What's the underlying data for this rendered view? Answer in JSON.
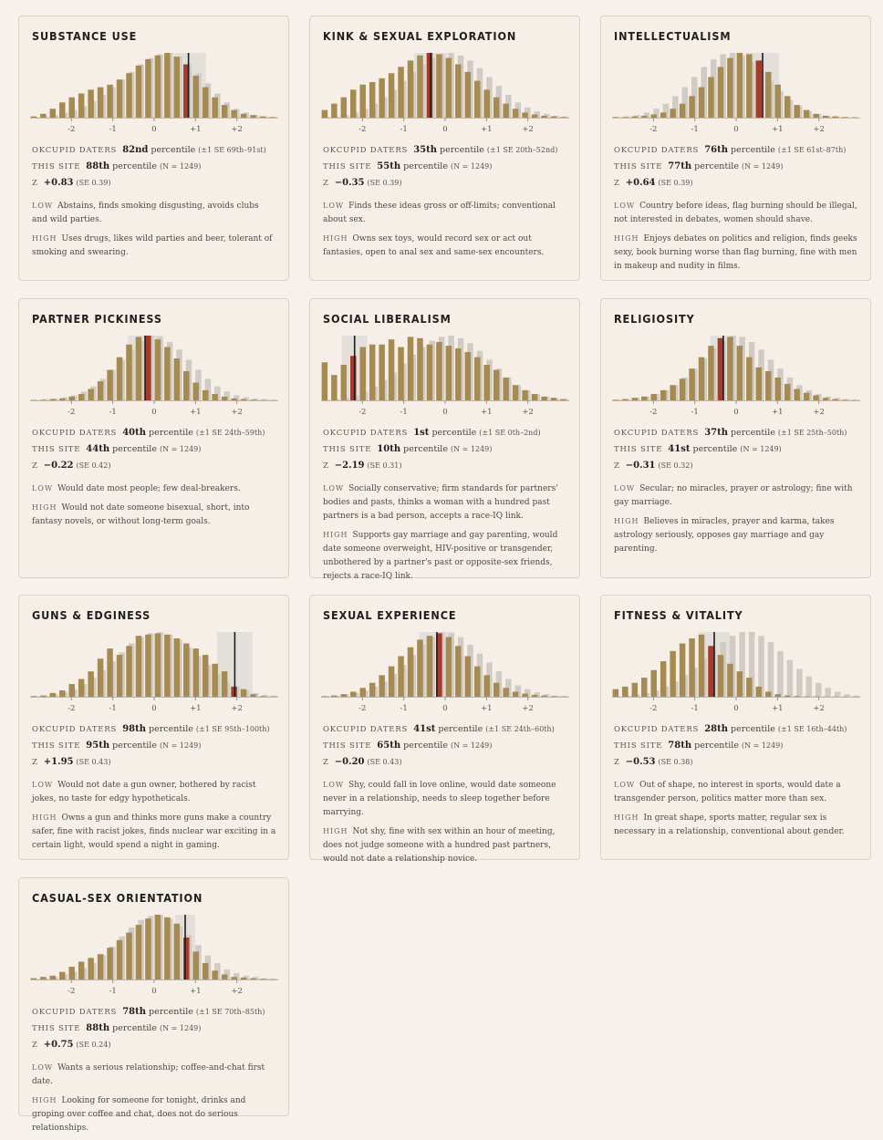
{
  "colors": {
    "page_bg": "#f6f1ea",
    "card_bg": "#f5efe7",
    "card_border": "#d9d2c7",
    "bar_site": "#a58a52",
    "bar_okcupid": "#d0cbc5",
    "band": "#e3e0dc",
    "marker": "#1c1c1c",
    "highlight": "#a83a2c"
  },
  "labels": {
    "okcupid": "OKCUPID DATERS",
    "site": "THIS SITE",
    "z": "Z",
    "low": "LOW",
    "high": "HIGH"
  },
  "axis_ticks": [
    "-2",
    "-1",
    "0",
    "+1",
    "+2"
  ],
  "cards": [
    {
      "title": "SUBSTANCE USE",
      "okcupid_pct": "82nd",
      "okcupid_rest": "percentile",
      "okcupid_paren": "(±1 SE 69th–91st)",
      "site_pct": "88th",
      "site_rest": "percentile",
      "site_paren": "(N = 1249)",
      "z_val": "+0.83",
      "z_paren": "(SE 0.39)",
      "low": "Abstains, finds smoking disgusting, avoids clubs and wild parties.",
      "high": "Uses drugs, likes wild parties and beer, tolerant of smoking and swearing.",
      "chart_data": {
        "type": "bar",
        "z_score": 0.83,
        "band": [
          0.45,
          1.25
        ],
        "okcupid_values": [
          0.5,
          1,
          2,
          4,
          6,
          9,
          13,
          18,
          24,
          30,
          36,
          42,
          47,
          50,
          51,
          48,
          42,
          35,
          27,
          19,
          12,
          7,
          4,
          2,
          1,
          0.5
        ],
        "site_values": [
          1,
          3,
          7,
          12,
          16,
          19,
          22,
          24,
          26,
          30,
          35,
          41,
          46,
          49,
          51,
          48,
          42,
          33,
          24,
          16,
          10,
          6,
          3,
          2,
          1,
          0.5
        ]
      }
    },
    {
      "title": "KINK & SEXUAL EXPLORATION",
      "okcupid_pct": "35th",
      "okcupid_rest": "percentile",
      "okcupid_paren": "(±1 SE 20th–52nd)",
      "site_pct": "55th",
      "site_rest": "percentile",
      "site_paren": "(N = 1249)",
      "z_val": "−0.35",
      "z_paren": "(SE 0.39)",
      "low": "Finds these ideas gross or off-limits; conventional about sex.",
      "high": "Owns sex toys, would record sex or act out fantasies, open to anal sex and same-sex encounters.",
      "chart_data": {
        "type": "bar",
        "z_score": -0.35,
        "band": [
          -0.75,
          0.05
        ],
        "okcupid_values": [
          0.5,
          1,
          2,
          4,
          7,
          11,
          16,
          22,
          29,
          36,
          42,
          47,
          50,
          51,
          49,
          45,
          39,
          32,
          25,
          18,
          12,
          8,
          5,
          3,
          1.5,
          1
        ],
        "site_values": [
          6,
          11,
          16,
          22,
          26,
          28,
          31,
          35,
          40,
          45,
          49,
          51,
          50,
          47,
          42,
          36,
          29,
          22,
          16,
          11,
          7,
          4,
          2.5,
          1.5,
          1,
          0.5
        ]
      }
    },
    {
      "title": "INTELLECTUALISM",
      "okcupid_pct": "76th",
      "okcupid_rest": "percentile",
      "okcupid_paren": "(±1 SE 61st–87th)",
      "site_pct": "77th",
      "site_rest": "percentile",
      "site_paren": "(N = 1249)",
      "z_val": "+0.64",
      "z_paren": "(SE 0.39)",
      "low": "Country before ideas, flag burning should be illegal, not interested in debates, women should shave.",
      "high": "Enjoys debates on politics and religion, finds geeks sexy, book burning worse than flag burning, fine with men in makeup and nudity in films.",
      "chart_data": {
        "type": "bar",
        "z_score": 0.64,
        "band": [
          0.24,
          1.04
        ],
        "okcupid_values": [
          0.5,
          1,
          2,
          4,
          7,
          11,
          17,
          24,
          32,
          40,
          46,
          50,
          51,
          49,
          44,
          37,
          29,
          21,
          14,
          9,
          5,
          3,
          1.5,
          1,
          0.5,
          0.3
        ],
        "site_values": [
          0.5,
          0.5,
          1,
          1.5,
          2.5,
          4,
          7,
          11,
          17,
          24,
          32,
          40,
          47,
          51,
          50,
          45,
          36,
          26,
          17,
          10,
          6,
          3,
          1.5,
          1,
          0.5,
          0.3
        ]
      }
    },
    {
      "title": "PARTNER PICKINESS",
      "okcupid_pct": "40th",
      "okcupid_rest": "percentile",
      "okcupid_paren": "(±1 SE 24th–59th)",
      "site_pct": "44th",
      "site_rest": "percentile",
      "site_paren": "(N = 1249)",
      "z_val": "−0.22",
      "z_paren": "(SE 0.42)",
      "low": "Would date most people; few deal-breakers.",
      "high": "Would not date someone bisexual, short, into fantasy novels, or without long-term goals.",
      "chart_data": {
        "type": "bar",
        "z_score": -0.22,
        "band": [
          -0.64,
          0.2
        ],
        "okcupid_values": [
          0.5,
          1,
          1.5,
          2.5,
          4,
          7,
          11,
          17,
          24,
          32,
          40,
          47,
          51,
          50,
          46,
          40,
          32,
          24,
          17,
          11,
          7,
          4,
          2.5,
          1.5,
          1,
          0.5
        ],
        "site_values": [
          0.3,
          0.5,
          1,
          1.5,
          3,
          5,
          9,
          15,
          24,
          34,
          44,
          50,
          51,
          48,
          42,
          33,
          23,
          14,
          8,
          5,
          3,
          1.5,
          1,
          0.5,
          0.3,
          0.2
        ]
      }
    },
    {
      "title": "SOCIAL LIBERALISM",
      "okcupid_pct": "1st",
      "okcupid_rest": "percentile",
      "okcupid_paren": "(±1 SE 0th–2nd)",
      "site_pct": "10th",
      "site_rest": "percentile",
      "site_paren": "(N = 1249)",
      "z_val": "−2.19",
      "z_paren": "(SE 0.31)",
      "low": "Socially conservative; firm standards for partners' bodies and pasts, thinks a woman with a hundred past partners is a bad person, accepts a race-IQ link.",
      "high": "Supports gay marriage and gay parenting, would date someone overweight, HIV-positive or transgender, unbothered by a partner's past or opposite-sex friends, rejects a race-IQ link.",
      "chart_data": {
        "type": "bar",
        "z_score": -2.19,
        "band": [
          -2.5,
          -1.88
        ],
        "okcupid_values": [
          0.5,
          1,
          2,
          4,
          7,
          11,
          16,
          22,
          29,
          36,
          42,
          47,
          50,
          51,
          49,
          45,
          39,
          32,
          25,
          18,
          12,
          8,
          5,
          3,
          1.5,
          1
        ],
        "site_values": [
          30,
          20,
          28,
          35,
          42,
          44,
          44,
          48,
          42,
          50,
          49,
          44,
          46,
          43,
          41,
          38,
          34,
          28,
          24,
          18,
          12,
          8,
          5,
          3,
          2,
          1
        ]
      }
    },
    {
      "title": "RELIGIOSITY",
      "okcupid_pct": "37th",
      "okcupid_rest": "percentile",
      "okcupid_paren": "(±1 SE 25th–50th)",
      "site_pct": "41st",
      "site_rest": "percentile",
      "site_paren": "(N = 1249)",
      "z_val": "−0.31",
      "z_paren": "(SE 0.32)",
      "low": "Secular; no miracles, prayer or astrology; fine with gay marriage.",
      "high": "Believes in miracles, prayer and karma, takes astrology seriously, opposes gay marriage and gay parenting.",
      "chart_data": {
        "type": "bar",
        "z_score": -0.31,
        "band": [
          -0.63,
          0.01
        ],
        "okcupid_values": [
          0.5,
          1,
          2,
          3,
          5,
          8,
          12,
          18,
          25,
          33,
          41,
          47,
          51,
          50,
          46,
          40,
          32,
          25,
          18,
          12,
          8,
          5,
          3,
          2,
          1,
          0.5
        ],
        "site_values": [
          0.5,
          1,
          2,
          3,
          5,
          8,
          12,
          17,
          25,
          34,
          43,
          49,
          50,
          43,
          34,
          26,
          23,
          18,
          13,
          9,
          6,
          4,
          2,
          1,
          0.5,
          0.3
        ]
      }
    },
    {
      "title": "GUNS & EDGINESS",
      "okcupid_pct": "98th",
      "okcupid_rest": "percentile",
      "okcupid_paren": "(±1 SE 95th–100th)",
      "site_pct": "95th",
      "site_rest": "percentile",
      "site_paren": "(N = 1249)",
      "z_val": "+1.95",
      "z_paren": "(SE 0.43)",
      "low": "Would not date a gun owner, bothered by racist jokes, no taste for edgy hypotheticals.",
      "high": "Owns a gun and thinks more guns make a country safer, fine with racist jokes, finds nuclear war exciting in a certain light, would spend a night in gaming.",
      "chart_data": {
        "type": "bar",
        "z_score": 1.95,
        "band": [
          1.52,
          2.38
        ],
        "okcupid_values": [
          0.5,
          1,
          2,
          4,
          6,
          10,
          15,
          21,
          28,
          35,
          42,
          47,
          50,
          51,
          49,
          45,
          39,
          32,
          25,
          18,
          12,
          8,
          5,
          3,
          1.5,
          1
        ],
        "site_values": [
          0.5,
          1,
          3,
          5,
          10,
          14,
          20,
          30,
          38,
          33,
          40,
          48,
          49,
          50,
          49,
          46,
          42,
          38,
          33,
          26,
          20,
          8,
          6,
          2,
          0.5,
          0.3
        ]
      }
    },
    {
      "title": "SEXUAL EXPERIENCE",
      "okcupid_pct": "41st",
      "okcupid_rest": "percentile",
      "okcupid_paren": "(±1 SE 24th–60th)",
      "site_pct": "65th",
      "site_rest": "percentile",
      "site_paren": "(N = 1249)",
      "z_val": "−0.20",
      "z_paren": "(SE 0.43)",
      "low": "Shy, could fall in love online, would date someone never in a relationship, needs to sleep together before marrying.",
      "high": "Not shy, fine with sex within an hour of meeting, does not judge someone with a hundred past partners, would not date a relationship novice.",
      "chart_data": {
        "type": "bar",
        "z_score": -0.2,
        "band": [
          -0.63,
          0.23
        ],
        "okcupid_values": [
          0.5,
          1,
          2,
          3,
          5,
          8,
          12,
          18,
          25,
          33,
          41,
          47,
          51,
          50,
          47,
          41,
          34,
          27,
          20,
          14,
          9,
          6,
          3.5,
          2,
          1,
          0.5
        ],
        "site_values": [
          0.5,
          1,
          2,
          4,
          7,
          11,
          17,
          24,
          32,
          39,
          45,
          48,
          50,
          47,
          40,
          32,
          24,
          17,
          11,
          7,
          4,
          2.5,
          1.5,
          1,
          0.5,
          0.3
        ]
      }
    },
    {
      "title": "FITNESS & VITALITY",
      "okcupid_pct": "28th",
      "okcupid_rest": "percentile",
      "okcupid_paren": "(±1 SE 16th–44th)",
      "site_pct": "78th",
      "site_rest": "percentile",
      "site_paren": "(N = 1249)",
      "z_val": "−0.53",
      "z_paren": "(SE 0.38)",
      "low": "Out of shape, no interest in sports, would date a transgender person, politics matter more than sex.",
      "high": "In great shape, sports matter, regular sex is necessary in a relationship, conventional about gender.",
      "chart_data": {
        "type": "bar",
        "z_score": -0.53,
        "band": [
          -0.91,
          -0.15
        ],
        "okcupid_values": [
          0.5,
          1,
          2,
          3,
          5,
          8,
          12,
          17,
          23,
          30,
          37,
          43,
          48,
          51,
          51,
          48,
          43,
          36,
          29,
          22,
          16,
          11,
          7,
          4,
          2,
          1
        ],
        "site_values": [
          6,
          8,
          11,
          15,
          21,
          28,
          36,
          42,
          46,
          49,
          40,
          33,
          26,
          20,
          15,
          8,
          4,
          2,
          1,
          0.5,
          0.3,
          0.3,
          0.2,
          0.2,
          0.2,
          0.2
        ]
      }
    },
    {
      "title": "CASUAL-SEX ORIENTATION",
      "okcupid_pct": "78th",
      "okcupid_rest": "percentile",
      "okcupid_paren": "(±1 SE 70th–85th)",
      "site_pct": "88th",
      "site_rest": "percentile",
      "site_paren": "(N = 1249)",
      "z_val": "+0.75",
      "z_paren": "(SE 0.24)",
      "low": "Wants a serious relationship; coffee-and-chat first date.",
      "high": "Looking for someone for tonight, drinks and groping over coffee and chat, does not do serious relationships.",
      "chart_data": {
        "type": "bar",
        "z_score": 0.75,
        "band": [
          0.51,
          0.99
        ],
        "okcupid_values": [
          0.5,
          1,
          2,
          4,
          6,
          9,
          13,
          19,
          26,
          34,
          41,
          47,
          50,
          51,
          48,
          42,
          35,
          27,
          19,
          13,
          8,
          5,
          3,
          2,
          1,
          0.5
        ],
        "site_values": [
          1,
          2,
          3,
          6,
          10,
          14,
          17,
          20,
          25,
          31,
          37,
          43,
          48,
          51,
          49,
          44,
          33,
          22,
          13,
          7,
          4,
          2,
          1.5,
          1,
          0.5,
          0.3
        ]
      }
    }
  ]
}
